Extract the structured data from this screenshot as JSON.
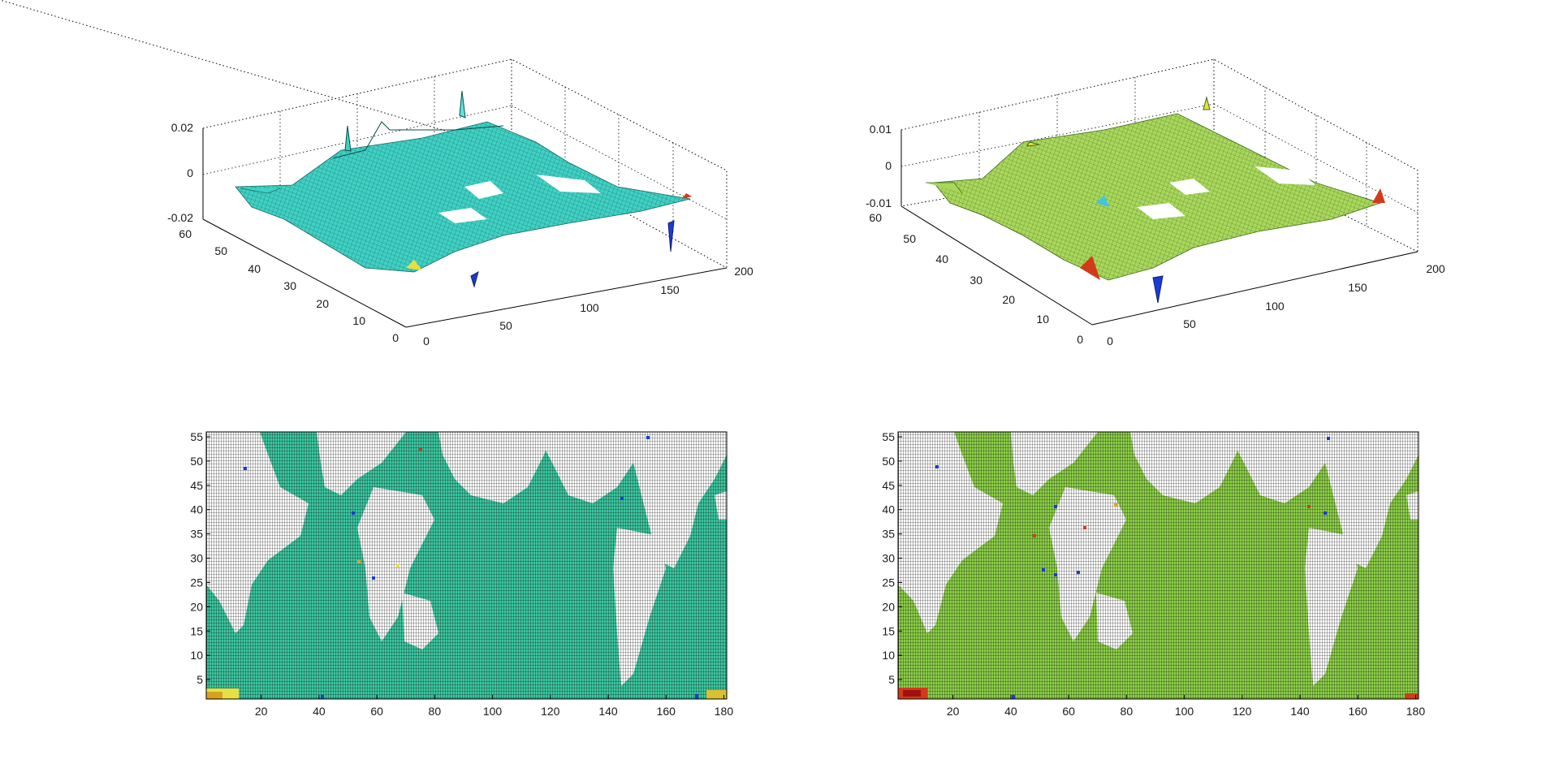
{
  "chart_data": [
    {
      "id": "surf-left",
      "type": "surface",
      "title": "",
      "xlim": [
        0,
        200
      ],
      "ylim": [
        0,
        60
      ],
      "zlim": [
        -0.02,
        0.02
      ],
      "xticks": [
        "0",
        "50",
        "100",
        "150",
        "200"
      ],
      "yticks": [
        "0",
        "10",
        "20",
        "30",
        "40",
        "50",
        "60"
      ],
      "zticks": [
        "-0.02",
        "0",
        "0.02"
      ],
      "colormap": "jet",
      "dominant_color": "#3fd1c4",
      "grid": true
    },
    {
      "id": "surf-right",
      "type": "surface",
      "title": "",
      "xlim": [
        0,
        200
      ],
      "ylim": [
        0,
        60
      ],
      "zlim": [
        -0.01,
        0.01
      ],
      "xticks": [
        "0",
        "50",
        "100",
        "150",
        "200"
      ],
      "yticks": [
        "0",
        "10",
        "20",
        "30",
        "40",
        "50",
        "60"
      ],
      "zticks": [
        "-0.01",
        "0",
        "0.01"
      ],
      "colormap": "jet",
      "dominant_color": "#a8d85a",
      "grid": true
    },
    {
      "id": "map-left",
      "type": "heatmap",
      "title": "",
      "xlim": [
        1,
        181
      ],
      "ylim": [
        1,
        56
      ],
      "xticks": [
        "20",
        "40",
        "60",
        "80",
        "100",
        "120",
        "140",
        "160",
        "180"
      ],
      "yticks": [
        "5",
        "10",
        "15",
        "20",
        "25",
        "30",
        "35",
        "40",
        "45",
        "50",
        "55"
      ],
      "colormap": "jet",
      "ocean_color": "#3cc6a0",
      "land_color": "#ffffff",
      "grid_color": "#000000"
    },
    {
      "id": "map-right",
      "type": "heatmap",
      "title": "",
      "xlim": [
        1,
        181
      ],
      "ylim": [
        1,
        56
      ],
      "xticks": [
        "20",
        "40",
        "60",
        "80",
        "100",
        "120",
        "140",
        "160",
        "180"
      ],
      "yticks": [
        "5",
        "10",
        "15",
        "20",
        "25",
        "30",
        "35",
        "40",
        "45",
        "50",
        "55"
      ],
      "colormap": "jet",
      "ocean_color": "#8ccf48",
      "land_color": "#ffffff",
      "grid_color": "#000000"
    }
  ]
}
